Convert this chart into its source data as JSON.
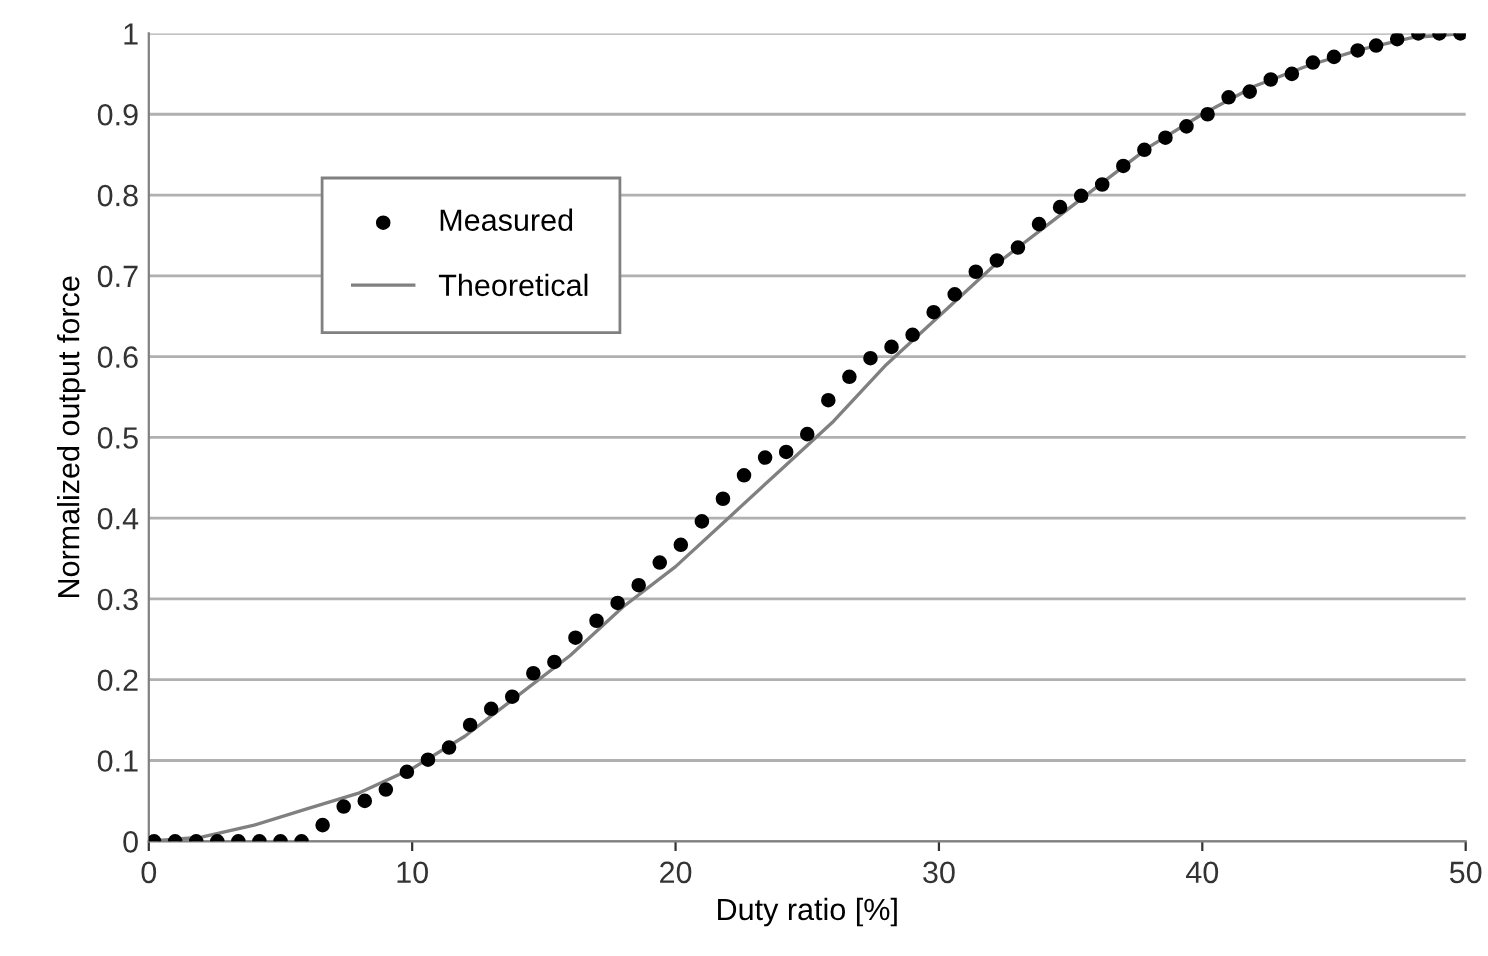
{
  "chart_data": {
    "type": "scatter",
    "xlabel": "Duty ratio [%]",
    "ylabel": "Normalized output force",
    "xlim": [
      0,
      50
    ],
    "xticks": [
      0,
      10,
      20,
      30,
      40,
      50
    ],
    "ylim": [
      0,
      1
    ],
    "yticks": [
      0,
      0.1,
      0.2,
      0.3,
      0.4,
      0.5,
      0.6,
      0.7,
      0.8,
      0.9,
      1
    ],
    "grid": "y",
    "legend": "top left",
    "series": [
      {
        "name": "Measured",
        "marker": "circle",
        "color": "#000000",
        "x": [
          0.2,
          1.0,
          1.8,
          2.6,
          3.4,
          4.2,
          5.0,
          5.8,
          6.6,
          7.4,
          8.2,
          9.0,
          9.8,
          10.6,
          11.4,
          12.2,
          13.0,
          13.8,
          14.6,
          15.4,
          16.2,
          17.0,
          17.8,
          18.6,
          19.4,
          20.2,
          21.0,
          21.8,
          22.6,
          23.4,
          24.2,
          25.0,
          25.8,
          26.6,
          27.4,
          28.2,
          29.0,
          29.8,
          30.6,
          31.4,
          32.2,
          33.0,
          33.8,
          34.6,
          35.4,
          36.2,
          37.0,
          37.8,
          38.6,
          39.4,
          40.2,
          41.0,
          41.8,
          42.6,
          43.4,
          44.2,
          45.0,
          45.9,
          46.6,
          47.4,
          48.2,
          49.0,
          49.8
        ],
        "values": [
          0,
          0,
          0,
          0,
          0,
          0,
          0,
          0,
          0.02,
          0.043,
          0.05,
          0.064,
          0.086,
          0.101,
          0.116,
          0.144,
          0.164,
          0.179,
          0.208,
          0.222,
          0.252,
          0.273,
          0.295,
          0.317,
          0.345,
          0.367,
          0.396,
          0.424,
          0.453,
          0.475,
          0.482,
          0.504,
          0.546,
          0.575,
          0.598,
          0.612,
          0.627,
          0.655,
          0.677,
          0.705,
          0.719,
          0.735,
          0.764,
          0.785,
          0.799,
          0.813,
          0.836,
          0.856,
          0.871,
          0.885,
          0.9,
          0.921,
          0.928,
          0.943,
          0.95,
          0.964,
          0.971,
          0.979,
          0.985,
          0.993,
          1.0,
          1.0,
          1.0
        ]
      },
      {
        "name": "Theoretical",
        "type": "line",
        "marker": "none",
        "line_style": "solid",
        "color": "#808080",
        "x": [
          0,
          2,
          4,
          6,
          8,
          10,
          12,
          14,
          16,
          18,
          20,
          22,
          24,
          26,
          28,
          30,
          32,
          34,
          36,
          38,
          40,
          42,
          44,
          46,
          48,
          50
        ],
        "values": [
          0,
          0.005,
          0.02,
          0.04,
          0.06,
          0.09,
          0.13,
          0.18,
          0.23,
          0.29,
          0.34,
          0.4,
          0.46,
          0.52,
          0.59,
          0.65,
          0.71,
          0.76,
          0.81,
          0.86,
          0.9,
          0.935,
          0.96,
          0.98,
          0.995,
          1.0
        ]
      }
    ]
  }
}
